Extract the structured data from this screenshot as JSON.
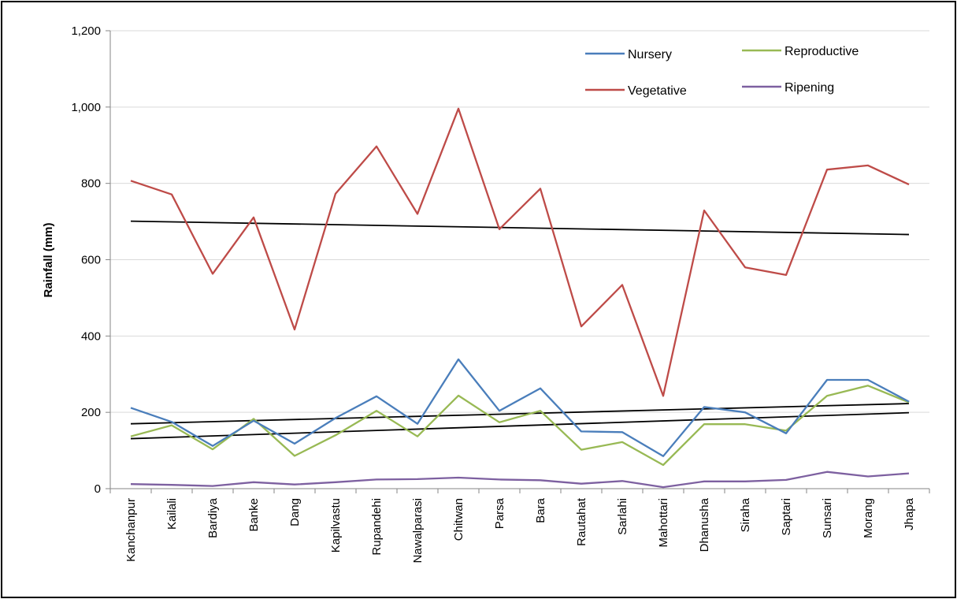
{
  "chart_data": {
    "type": "line",
    "ylabel": "Rainfall (mm)",
    "ylim": [
      0,
      1200
    ],
    "yticks": [
      0,
      200,
      400,
      600,
      800,
      1000,
      1200
    ],
    "ytick_labels": [
      "0",
      "200",
      "400",
      "600",
      "800",
      "1,000",
      "1,200"
    ],
    "grid": true,
    "legend_position": "top-right",
    "categories": [
      "Kanchanpur",
      "Kailali",
      "Bardiya",
      "Banke",
      "Dang",
      "Kapilvastu",
      "Rupandehi",
      "Nawalparasi",
      "Chitwan",
      "Parsa",
      "Bara",
      "Rautahat",
      "Sarlahi",
      "Mahottari",
      "Dhanusha",
      "Siraha",
      "Saptari",
      "Sunsari",
      "Morang",
      "Jhapa"
    ],
    "series": [
      {
        "name": "Nursery",
        "color": "#4a7ebb",
        "values": [
          212,
          175,
          112,
          178,
          118,
          185,
          242,
          170,
          339,
          204,
          263,
          150,
          148,
          85,
          214,
          200,
          145,
          285,
          285,
          228
        ]
      },
      {
        "name": "Vegetative",
        "color": "#be4b48",
        "values": [
          807,
          771,
          563,
          711,
          417,
          773,
          897,
          720,
          996,
          680,
          786,
          425,
          534,
          243,
          729,
          580,
          560,
          836,
          847,
          797
        ]
      },
      {
        "name": "Reproductive",
        "color": "#98b954",
        "values": [
          137,
          166,
          103,
          183,
          86,
          140,
          204,
          137,
          244,
          174,
          204,
          102,
          122,
          62,
          169,
          169,
          152,
          243,
          270,
          226
        ]
      },
      {
        "name": "Ripening",
        "color": "#7d60a0",
        "values": [
          12,
          10,
          7,
          17,
          11,
          17,
          24,
          25,
          29,
          24,
          22,
          13,
          20,
          4,
          19,
          19,
          23,
          44,
          32,
          40
        ]
      }
    ],
    "trendlines": [
      {
        "color": "#000000",
        "start": 701,
        "end": 666
      },
      {
        "color": "#000000",
        "start": 170,
        "end": 223
      },
      {
        "color": "#000000",
        "start": 131,
        "end": 199
      }
    ]
  }
}
